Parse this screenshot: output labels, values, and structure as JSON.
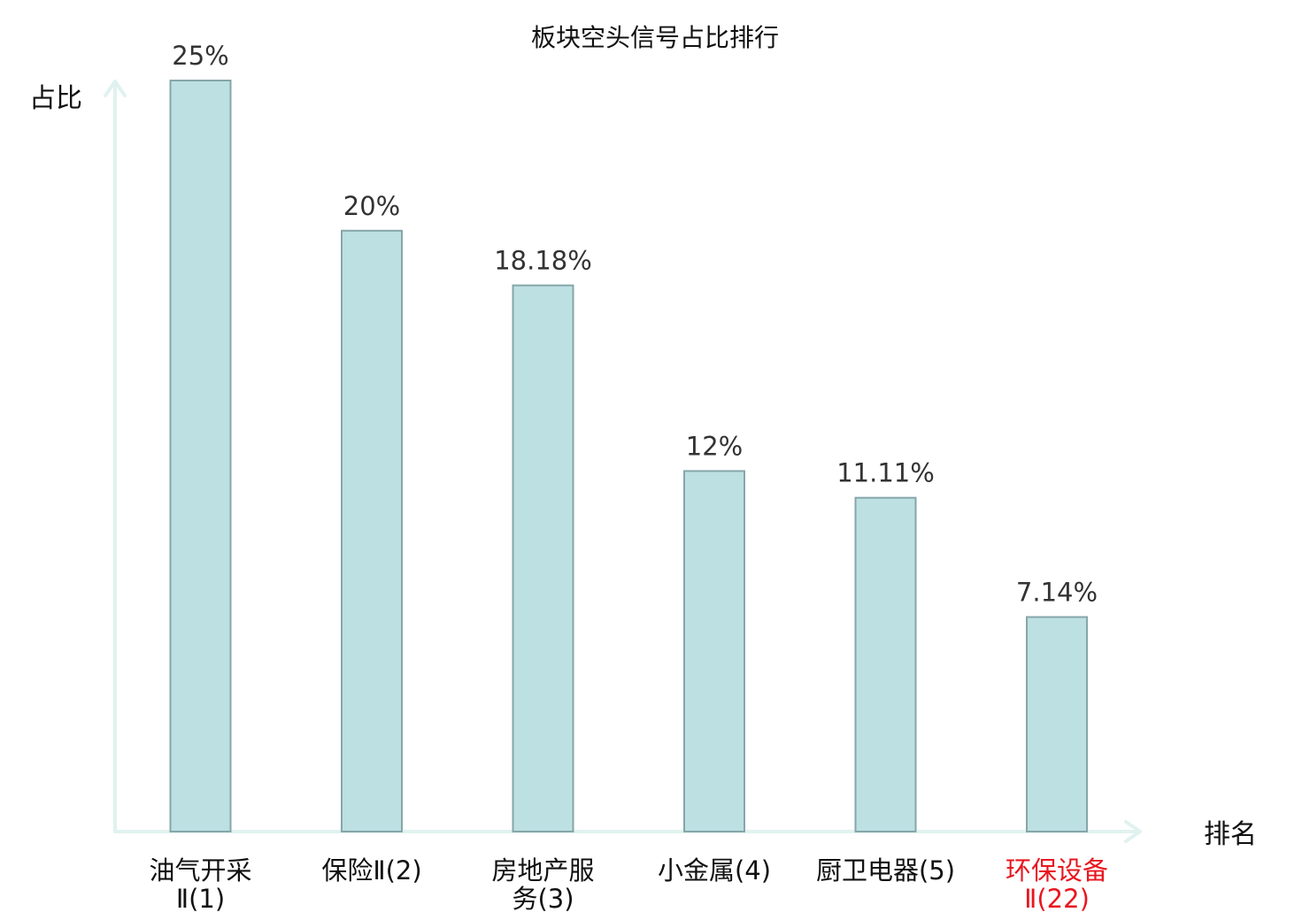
{
  "chart_data": {
    "type": "bar",
    "title": "板块空头信号占比排行",
    "xlabel": "排名",
    "ylabel": "占比",
    "categories": [
      {
        "lines": [
          "油气开采",
          "Ⅱ(1)"
        ],
        "highlight": false
      },
      {
        "lines": [
          "保险Ⅱ(2)"
        ],
        "highlight": false
      },
      {
        "lines": [
          "房地产服",
          "务(3)"
        ],
        "highlight": false
      },
      {
        "lines": [
          "小金属(4)"
        ],
        "highlight": false
      },
      {
        "lines": [
          "厨卫电器(5)"
        ],
        "highlight": false
      },
      {
        "lines": [
          "环保设备",
          "Ⅱ(22)"
        ],
        "highlight": true
      }
    ],
    "values": [
      25,
      20,
      18.18,
      12,
      11.11,
      7.14
    ],
    "value_labels": [
      "25%",
      "20%",
      "18.18%",
      "12%",
      "11.11%",
      "7.14%"
    ],
    "ylim": [
      0,
      25
    ],
    "grid": false,
    "colors": {
      "bar_fill": "#bde0e3",
      "bar_stroke": "#86a6a9",
      "axis": "#e0f2ef",
      "text": "#111111",
      "value_text": "#333333",
      "highlight": "#e8171f"
    }
  }
}
